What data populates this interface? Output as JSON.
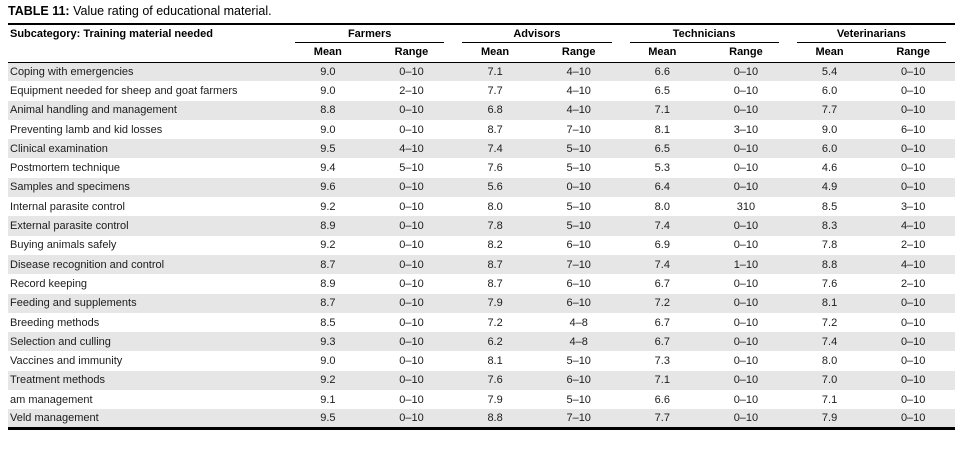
{
  "title": {
    "label": "TABLE 11:",
    "text": "Value rating of educational material."
  },
  "colors": {
    "row_shade": "#e6e6e6",
    "rule": "#000000",
    "background": "#ffffff"
  },
  "chart_data": {
    "type": "table",
    "title": "TABLE 11: Value rating of educational material.",
    "row_header": "Subcategory: Training material needed",
    "groups": [
      {
        "label": "Farmers"
      },
      {
        "label": "Advisors"
      },
      {
        "label": "Technicians"
      },
      {
        "label": "Veterinarians"
      }
    ],
    "sub_headers": [
      "Mean",
      "Range"
    ],
    "rows": [
      {
        "label": "Coping with emergencies",
        "values": [
          "9.0",
          "0–10",
          "7.1",
          "4–10",
          "6.6",
          "0–10",
          "5.4",
          "0–10"
        ]
      },
      {
        "label": "Equipment needed for sheep and goat farmers",
        "values": [
          "9.0",
          "2–10",
          "7.7",
          "4–10",
          "6.5",
          "0–10",
          "6.0",
          "0–10"
        ]
      },
      {
        "label": "Animal handling and management",
        "values": [
          "8.8",
          "0–10",
          "6.8",
          "4–10",
          "7.1",
          "0–10",
          "7.7",
          "0–10"
        ]
      },
      {
        "label": "Preventing lamb and kid losses",
        "values": [
          "9.0",
          "0–10",
          "8.7",
          "7–10",
          "8.1",
          "3–10",
          "9.0",
          "6–10"
        ]
      },
      {
        "label": "Clinical examination",
        "values": [
          "9.5",
          "4–10",
          "7.4",
          "5–10",
          "6.5",
          "0–10",
          "6.0",
          "0–10"
        ]
      },
      {
        "label": "Postmortem technique",
        "values": [
          "9.4",
          "5–10",
          "7.6",
          "5–10",
          "5.3",
          "0–10",
          "4.6",
          "0–10"
        ]
      },
      {
        "label": "Samples and specimens",
        "values": [
          "9.6",
          "0–10",
          "5.6",
          "0–10",
          "6.4",
          "0–10",
          "4.9",
          "0–10"
        ]
      },
      {
        "label": "Internal parasite control",
        "values": [
          "9.2",
          "0–10",
          "8.0",
          "5–10",
          "8.0",
          "310",
          "8.5",
          "3–10"
        ]
      },
      {
        "label": "External parasite control",
        "values": [
          "8.9",
          "0–10",
          "7.8",
          "5–10",
          "7.4",
          "0–10",
          "8.3",
          "4–10"
        ]
      },
      {
        "label": "Buying animals safely",
        "values": [
          "9.2",
          "0–10",
          "8.2",
          "6–10",
          "6.9",
          "0–10",
          "7.8",
          "2–10"
        ]
      },
      {
        "label": "Disease recognition and control",
        "values": [
          "8.7",
          "0–10",
          "8.7",
          "7–10",
          "7.4",
          "1–10",
          "8.8",
          "4–10"
        ]
      },
      {
        "label": "Record keeping",
        "values": [
          "8.9",
          "0–10",
          "8.7",
          "6–10",
          "6.7",
          "0–10",
          "7.6",
          "2–10"
        ]
      },
      {
        "label": "Feeding and supplements",
        "values": [
          "8.7",
          "0–10",
          "7.9",
          "6–10",
          "7.2",
          "0–10",
          "8.1",
          "0–10"
        ]
      },
      {
        "label": "Breeding methods",
        "values": [
          "8.5",
          "0–10",
          "7.2",
          "4–8",
          "6.7",
          "0–10",
          "7.2",
          "0–10"
        ]
      },
      {
        "label": "Selection and culling",
        "values": [
          "9.3",
          "0–10",
          "6.2",
          "4–8",
          "6.7",
          "0–10",
          "7.4",
          "0–10"
        ]
      },
      {
        "label": "Vaccines and immunity",
        "values": [
          "9.0",
          "0–10",
          "8.1",
          "5–10",
          "7.3",
          "0–10",
          "8.0",
          "0–10"
        ]
      },
      {
        "label": "Treatment methods",
        "values": [
          "9.2",
          "0–10",
          "7.6",
          "6–10",
          "7.1",
          "0–10",
          "7.0",
          "0–10"
        ]
      },
      {
        "label": "am management",
        "values": [
          "9.1",
          "0–10",
          "7.9",
          "5–10",
          "6.6",
          "0–10",
          "7.1",
          "0–10"
        ]
      },
      {
        "label": "Veld management",
        "values": [
          "9.5",
          "0–10",
          "8.8",
          "7–10",
          "7.7",
          "0–10",
          "7.9",
          "0–10"
        ]
      }
    ]
  }
}
